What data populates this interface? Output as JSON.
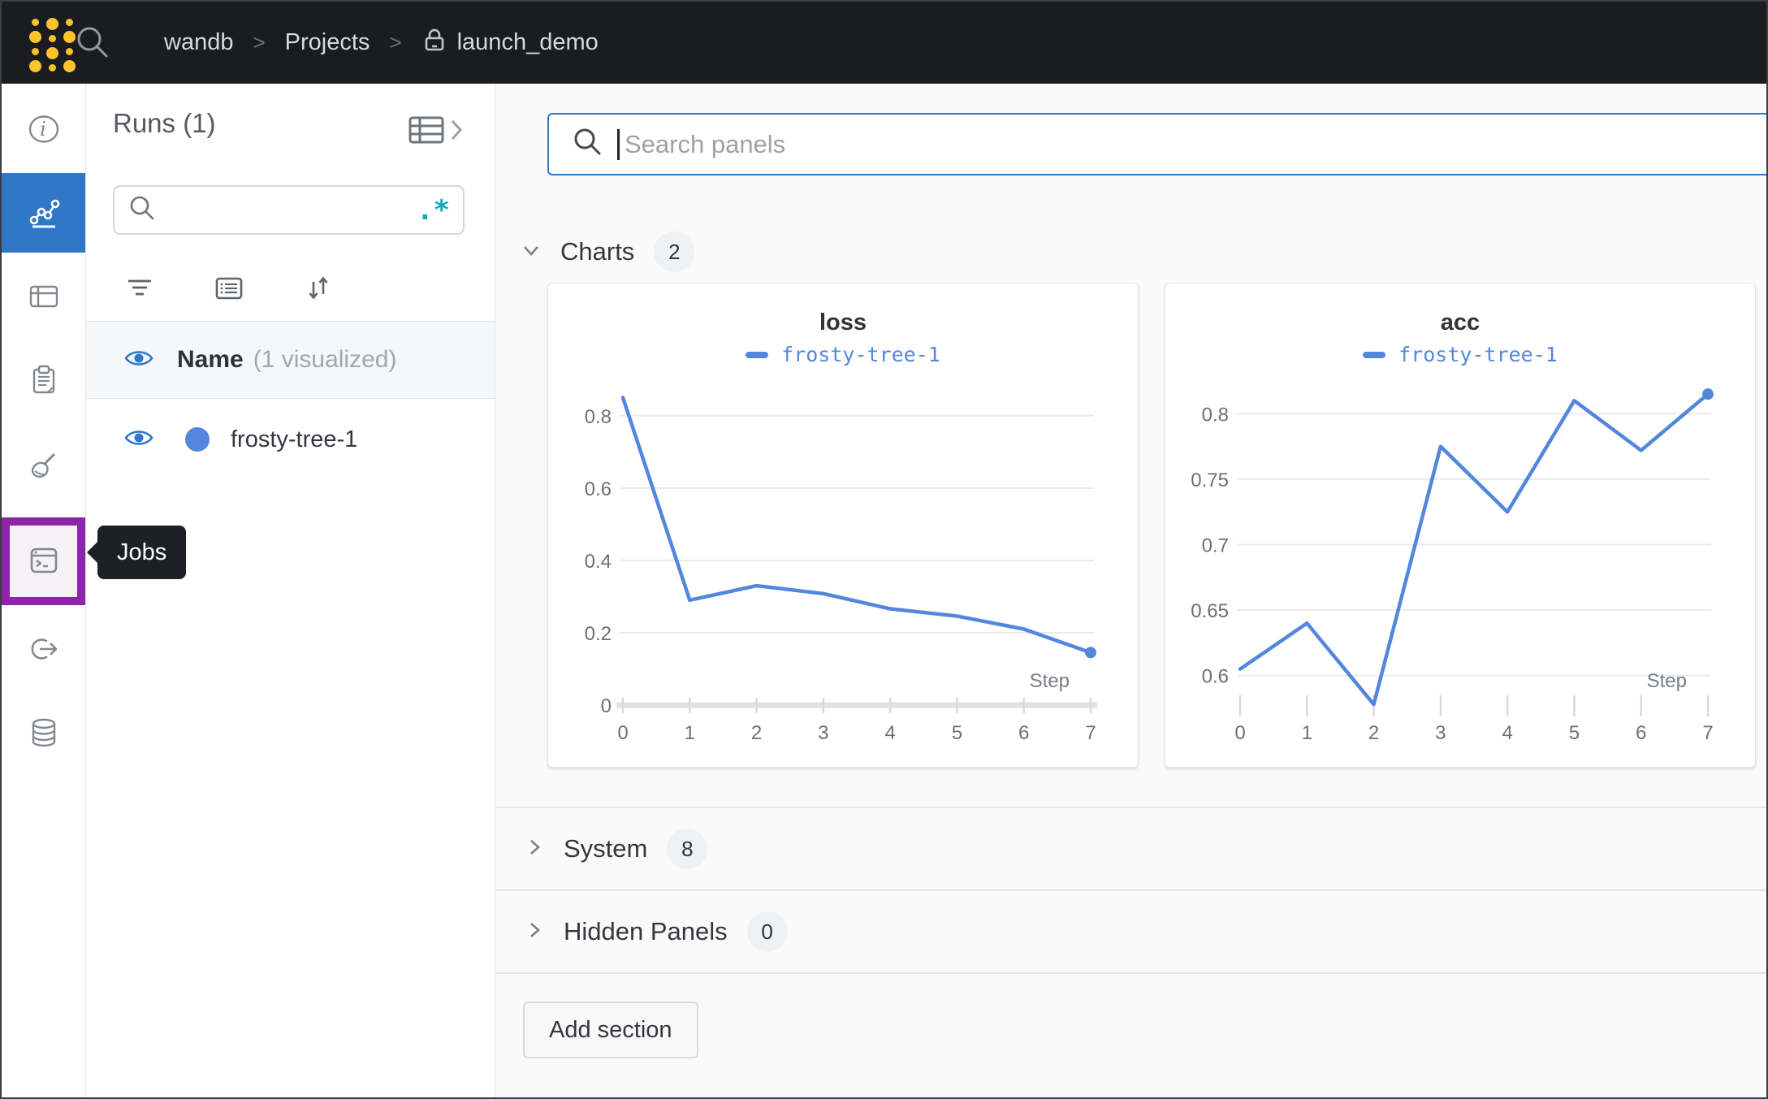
{
  "topbar": {
    "logo_icon": "wandb-dots-logo",
    "search_icon": "search-icon",
    "separator": ">",
    "breadcrumb": [
      {
        "label": "wandb"
      },
      {
        "label": "Projects"
      },
      {
        "label": "launch_demo",
        "icon": "lock-icon"
      }
    ]
  },
  "sidebar": {
    "items": [
      {
        "id": "overview",
        "icon": "info-icon",
        "selected": false
      },
      {
        "id": "workspace",
        "icon": "line-chart-icon",
        "selected": true
      },
      {
        "id": "runs-table",
        "icon": "table-panel-icon",
        "selected": false
      },
      {
        "id": "logs",
        "icon": "clipboard-icon",
        "selected": false
      },
      {
        "id": "sweeps",
        "icon": "broom-icon",
        "selected": false
      },
      {
        "id": "jobs",
        "icon": "terminal-icon",
        "selected": false,
        "highlighted": true,
        "tooltip": "Jobs"
      },
      {
        "id": "automations",
        "icon": "launch-arrow-icon",
        "selected": false
      },
      {
        "id": "artifacts",
        "icon": "database-icon",
        "selected": false
      }
    ]
  },
  "tooltip": {
    "label": "Jobs"
  },
  "runs_panel": {
    "title": "Runs (1)",
    "expand_icon": "table-grid-icon",
    "search": {
      "placeholder": "",
      "icon": "search-icon",
      "regex_label": ".*"
    },
    "tools": [
      "filter-icon",
      "list-icon",
      "sort-icon"
    ],
    "columns": {
      "name": "Name",
      "annotation": "(1 visualized)"
    },
    "runs": [
      {
        "name": "frosty-tree-1",
        "color": "#5387dd",
        "visible": true
      }
    ]
  },
  "main": {
    "search": {
      "placeholder": "Search panels",
      "icon": "search-icon"
    },
    "sections": [
      {
        "label": "Charts",
        "count": "2",
        "expanded": true
      },
      {
        "label": "System",
        "count": "8",
        "expanded": false
      },
      {
        "label": "Hidden Panels",
        "count": "0",
        "expanded": false
      }
    ],
    "add_section_label": "Add section"
  },
  "chart_data": [
    {
      "type": "line",
      "title": "loss",
      "xlabel": "Step",
      "x": [
        0,
        1,
        2,
        3,
        4,
        5,
        6,
        7
      ],
      "series": [
        {
          "name": "frosty-tree-1",
          "color": "#5387dd",
          "y": [
            0.85,
            0.29,
            0.33,
            0.308,
            0.266,
            0.246,
            0.21,
            0.145
          ]
        }
      ],
      "xticks": [
        0,
        1,
        2,
        3,
        4,
        5,
        6,
        7
      ],
      "yticks": [
        0,
        0.2,
        0.4,
        0.6,
        0.8
      ],
      "xlim": [
        0,
        7
      ],
      "ylim": [
        0,
        0.905
      ],
      "zero_baseline": true,
      "grid": "horizontal",
      "legend_position": "top",
      "end_point_marker": true
    },
    {
      "type": "line",
      "title": "acc",
      "xlabel": "Step",
      "x": [
        0,
        1,
        2,
        3,
        4,
        5,
        6,
        7
      ],
      "series": [
        {
          "name": "frosty-tree-1",
          "color": "#5387dd",
          "y": [
            0.605,
            0.64,
            0.578,
            0.775,
            0.725,
            0.81,
            0.772,
            0.815
          ]
        }
      ],
      "xticks": [
        0,
        1,
        2,
        3,
        4,
        5,
        6,
        7
      ],
      "yticks": [
        0.6,
        0.65,
        0.7,
        0.75,
        0.8
      ],
      "xlim": [
        0,
        7
      ],
      "ylim": [
        0.5775,
        0.8275
      ],
      "zero_baseline": false,
      "grid": "horizontal",
      "legend_position": "top",
      "end_point_marker": true
    }
  ],
  "colors": {
    "topbar_bg": "#1a1c1f",
    "logo_yellow": "#fcc32d",
    "accent_blue": "#2e78c7",
    "run_blue": "#5387dd",
    "highlight_purple": "#8e24aa",
    "regex_teal": "#13a8b6",
    "main_bg": "#fafafa",
    "text_dark": "#33373d"
  }
}
